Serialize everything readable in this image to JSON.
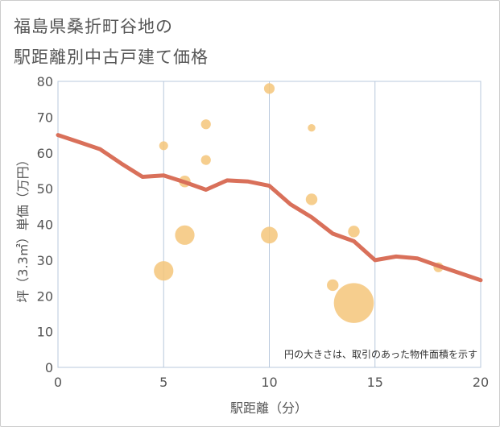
{
  "title_line1": "福島県桑折町谷地の",
  "title_line2": "駅距離別中古戸建て価格",
  "chart_data": {
    "type": "scatter",
    "title": "福島県桑折町谷地の駅距離別中古戸建て価格",
    "xlabel": "駅距離（分）",
    "ylabel": "坪（3.3㎡）単価（万円）",
    "xlim": [
      0,
      20
    ],
    "ylim": [
      0,
      80
    ],
    "xticks": [
      0,
      5,
      10,
      15,
      20
    ],
    "yticks": [
      0,
      10,
      20,
      30,
      40,
      50,
      60,
      70,
      80
    ],
    "grid": true,
    "note": "円の大きさは、取引のあった物件面積を示す",
    "colors": {
      "points": "#f5c57a",
      "line": "#d9705a",
      "grid": "#b8c8dc"
    },
    "points": [
      {
        "x": 5,
        "y": 62,
        "size": 1.0
      },
      {
        "x": 5,
        "y": 27,
        "size": 2.2
      },
      {
        "x": 6,
        "y": 52,
        "size": 1.3
      },
      {
        "x": 6,
        "y": 37,
        "size": 2.2
      },
      {
        "x": 7,
        "y": 68,
        "size": 1.1
      },
      {
        "x": 7,
        "y": 58,
        "size": 1.1
      },
      {
        "x": 10,
        "y": 78,
        "size": 1.2
      },
      {
        "x": 10,
        "y": 37,
        "size": 1.9
      },
      {
        "x": 12,
        "y": 67,
        "size": 0.85
      },
      {
        "x": 12,
        "y": 47,
        "size": 1.3
      },
      {
        "x": 13,
        "y": 23,
        "size": 1.3
      },
      {
        "x": 14,
        "y": 38,
        "size": 1.3
      },
      {
        "x": 14,
        "y": 18,
        "size": 4.5
      },
      {
        "x": 18,
        "y": 28,
        "size": 1.1
      }
    ],
    "trend": {
      "x": [
        0,
        1,
        2,
        3,
        4,
        5,
        6,
        7,
        8,
        9,
        10,
        11,
        12,
        13,
        14,
        15,
        16,
        17,
        18,
        19,
        20
      ],
      "y": [
        65,
        63,
        61,
        57,
        53.3,
        53.7,
        51.8,
        49.7,
        52.3,
        52,
        50.8,
        45.6,
        42,
        37.4,
        35.3,
        30,
        31,
        30.5,
        28.4,
        26.4,
        24.4
      ]
    }
  }
}
